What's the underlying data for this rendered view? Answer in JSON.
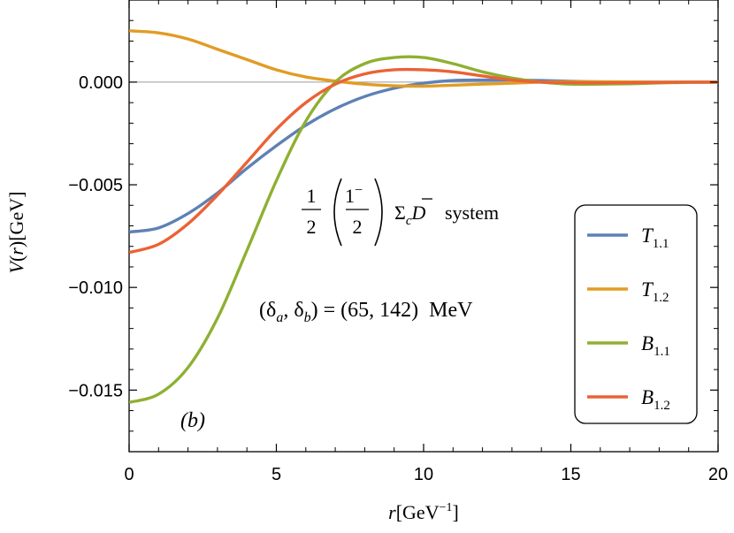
{
  "chart_data": {
    "type": "line",
    "xlabel": {
      "var": "r",
      "unit_prefix": "[GeV",
      "unit_exp": "−1",
      "unit_suffix": "]"
    },
    "ylabel": {
      "v": "V",
      "paren_open": "(",
      "r": "r",
      "paren_close": ")",
      "unit": "[GeV]"
    },
    "xlim": [
      0,
      20
    ],
    "ylim": [
      -0.018,
      0.004
    ],
    "xticks": [
      0,
      5,
      10,
      15,
      20
    ],
    "xtick_labels": [
      "0",
      "5",
      "10",
      "15",
      "20"
    ],
    "yticks": [
      0.0,
      -0.005,
      -0.01,
      -0.015
    ],
    "ytick_labels": [
      "0.000",
      "−0.005",
      "−0.010",
      "−0.015"
    ],
    "grid": false,
    "legend_position": "right",
    "annotations": {
      "system": {
        "half": "1",
        "half_den": "2",
        "jp_num": "1",
        "jp_sup": "−",
        "jp_den": "2",
        "particle": "Σ",
        "particle_sub": "c",
        "dbar": "D",
        "word": "system"
      },
      "deltas": {
        "lhs": "(δ",
        "sub_a": "a",
        "comma": ", δ",
        "sub_b": "b",
        "rhs": ") = (65, 142)",
        "unit": "MeV"
      },
      "panel": "(b)"
    },
    "series": [
      {
        "name": "T1.1",
        "name_main": "T",
        "name_sub": "1.1",
        "color": "#5e81b5",
        "x": [
          0,
          1,
          2,
          3,
          4,
          5,
          6,
          7,
          8,
          9,
          10,
          11,
          12,
          13,
          14,
          15,
          16,
          17,
          18,
          19,
          20
        ],
        "y": [
          -0.0073,
          -0.0071,
          -0.0064,
          -0.0054,
          -0.0042,
          -0.0031,
          -0.0021,
          -0.0013,
          -0.0007,
          -0.0003,
          -5e-05,
          8e-05,
          0.0001,
          0.0001,
          8e-05,
          4e-05,
          1e-05,
          0.0,
          0.0,
          0.0,
          0.0
        ]
      },
      {
        "name": "T1.2",
        "name_main": "T",
        "name_sub": "1.2",
        "color": "#e19c24",
        "x": [
          0,
          1,
          2,
          3,
          4,
          5,
          6,
          7,
          8,
          9,
          10,
          11,
          12,
          13,
          14,
          15,
          16,
          17,
          18,
          19,
          20
        ],
        "y": [
          0.0025,
          0.0024,
          0.0021,
          0.0016,
          0.0011,
          0.0006,
          0.00025,
          5e-05,
          -0.0001,
          -0.00018,
          -0.0002,
          -0.00015,
          -0.0001,
          -5e-05,
          0.0,
          2e-05,
          2e-05,
          1e-05,
          0.0,
          0.0,
          0.0
        ]
      },
      {
        "name": "B1.1",
        "name_main": "B",
        "name_sub": "1.1",
        "color": "#8fb032",
        "x": [
          0,
          1,
          2,
          3,
          4,
          5,
          6,
          7,
          8,
          9,
          10,
          11,
          12,
          13,
          14,
          15,
          16,
          17,
          18,
          19,
          20
        ],
        "y": [
          -0.0156,
          -0.0152,
          -0.0139,
          -0.0115,
          -0.0082,
          -0.0048,
          -0.0019,
          0.0,
          0.0009,
          0.0012,
          0.0012,
          0.0009,
          0.0005,
          0.0002,
          0.0,
          -0.0001,
          -0.0001,
          -8e-05,
          -4e-05,
          -1e-05,
          0.0
        ]
      },
      {
        "name": "B1.2",
        "name_main": "B",
        "name_sub": "1.2",
        "color": "#eb6235",
        "x": [
          0,
          1,
          2,
          3,
          4,
          5,
          6,
          7,
          8,
          9,
          10,
          11,
          12,
          13,
          14,
          15,
          16,
          17,
          18,
          19,
          20
        ],
        "y": [
          -0.0083,
          -0.0079,
          -0.0069,
          -0.0055,
          -0.0039,
          -0.0023,
          -0.001,
          -0.0001,
          0.0004,
          0.0006,
          0.0006,
          0.0005,
          0.0003,
          0.0001,
          0.0,
          -3e-05,
          -4e-05,
          -3e-05,
          -1e-05,
          0.0,
          0.0
        ]
      }
    ]
  }
}
